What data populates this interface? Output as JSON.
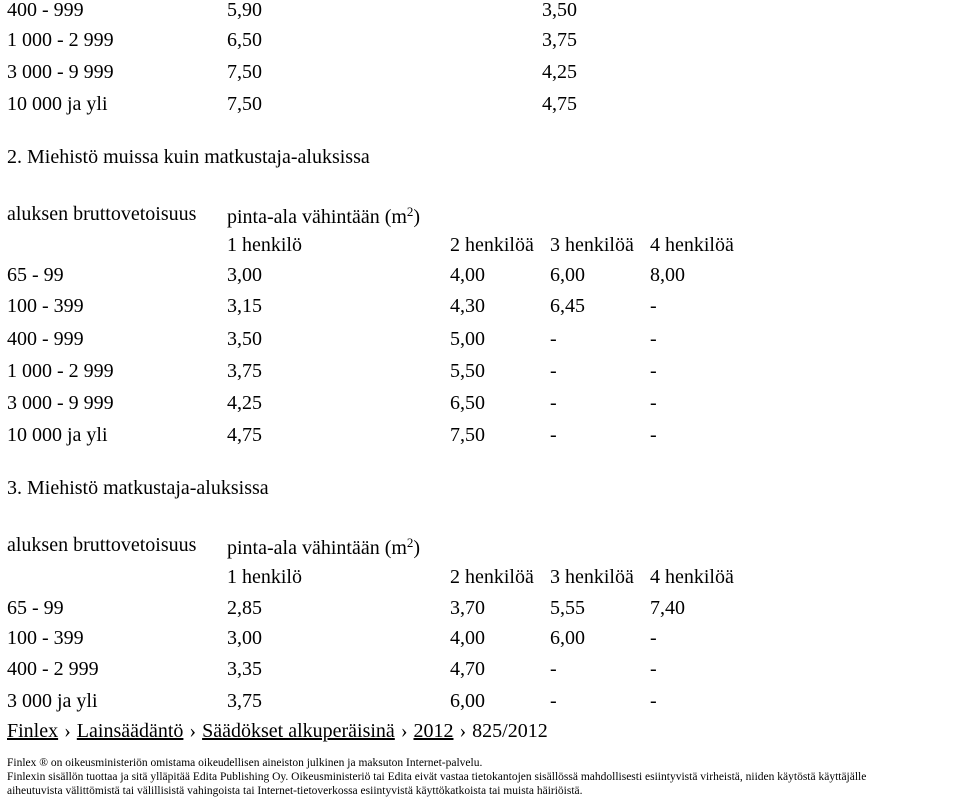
{
  "table1": {
    "rows": [
      [
        "400 - 999",
        "5,90",
        "3,50"
      ],
      [
        "1 000 - 2 999",
        "6,50",
        "3,75"
      ],
      [
        "3 000 - 9 999",
        "7,50",
        "4,25"
      ],
      [
        "10 000 ja yli",
        "7,50",
        "4,75"
      ]
    ]
  },
  "section2": {
    "heading": "2. Miehistö muissa kuin matkustaja-aluksissa",
    "label_col0": "aluksen bruttovetoisuus",
    "label_col1_prefix": "pinta-ala vähintään (m",
    "label_col1_sup": "2",
    "label_col1_suffix": ")",
    "headers": [
      "1 henkilö",
      "2 henkilöä",
      "3 henkilöä",
      "4 henkilöä"
    ],
    "rows": [
      [
        "65 - 99",
        "3,00",
        "4,00",
        "6,00",
        "8,00"
      ],
      [
        "100 - 399",
        "3,15",
        "4,30",
        "6,45",
        "-"
      ],
      [
        "400 - 999",
        "3,50",
        "5,00",
        "-",
        "-"
      ],
      [
        "1 000 - 2 999",
        "3,75",
        "5,50",
        "-",
        "-"
      ],
      [
        "3 000 - 9 999",
        "4,25",
        "6,50",
        "-",
        "-"
      ],
      [
        "10 000 ja yli",
        "4,75",
        "7,50",
        "-",
        "-"
      ]
    ]
  },
  "section3": {
    "heading": "3. Miehistö matkustaja-aluksissa",
    "label_col0": "aluksen bruttovetoisuus",
    "label_col1_prefix": "pinta-ala vähintään (m",
    "label_col1_sup": "2",
    "label_col1_suffix": ")",
    "headers": [
      "1 henkilö",
      "2 henkilöä",
      "3 henkilöä",
      "4 henkilöä"
    ],
    "rows": [
      [
        "65 - 99",
        "2,85",
        "3,70",
        "5,55",
        "7,40"
      ],
      [
        "100 - 399",
        "3,00",
        "4,00",
        "6,00",
        "-"
      ],
      [
        "400 - 2 999",
        "3,35",
        "4,70",
        "-",
        "-"
      ],
      [
        "3 000 ja yli",
        "3,75",
        "6,00",
        "-",
        "-"
      ]
    ]
  },
  "breadcrumb": {
    "separator": "›",
    "links": [
      "Finlex",
      "Lainsäädäntö",
      "Säädökset alkuperäisinä",
      "2012"
    ],
    "current": "825/2012"
  },
  "footer": {
    "line1": "Finlex ® on oikeusministeriön omistama oikeudellisen aineiston julkinen ja maksuton Internet-palvelu.",
    "line2": "Finlexin sisällön tuottaa ja sitä ylläpitää Edita Publishing Oy. Oikeusministeriö tai Edita eivät vastaa tietokantojen sisällössä mahdollisesti esiintyvistä virheistä, niiden käytöstä käyttäjälle",
    "line3": "aiheutuvista välittömistä tai välillisistä vahingoista tai Internet-tietoverkossa esiintyvistä käyttökatkoista tai muista häiriöistä."
  }
}
